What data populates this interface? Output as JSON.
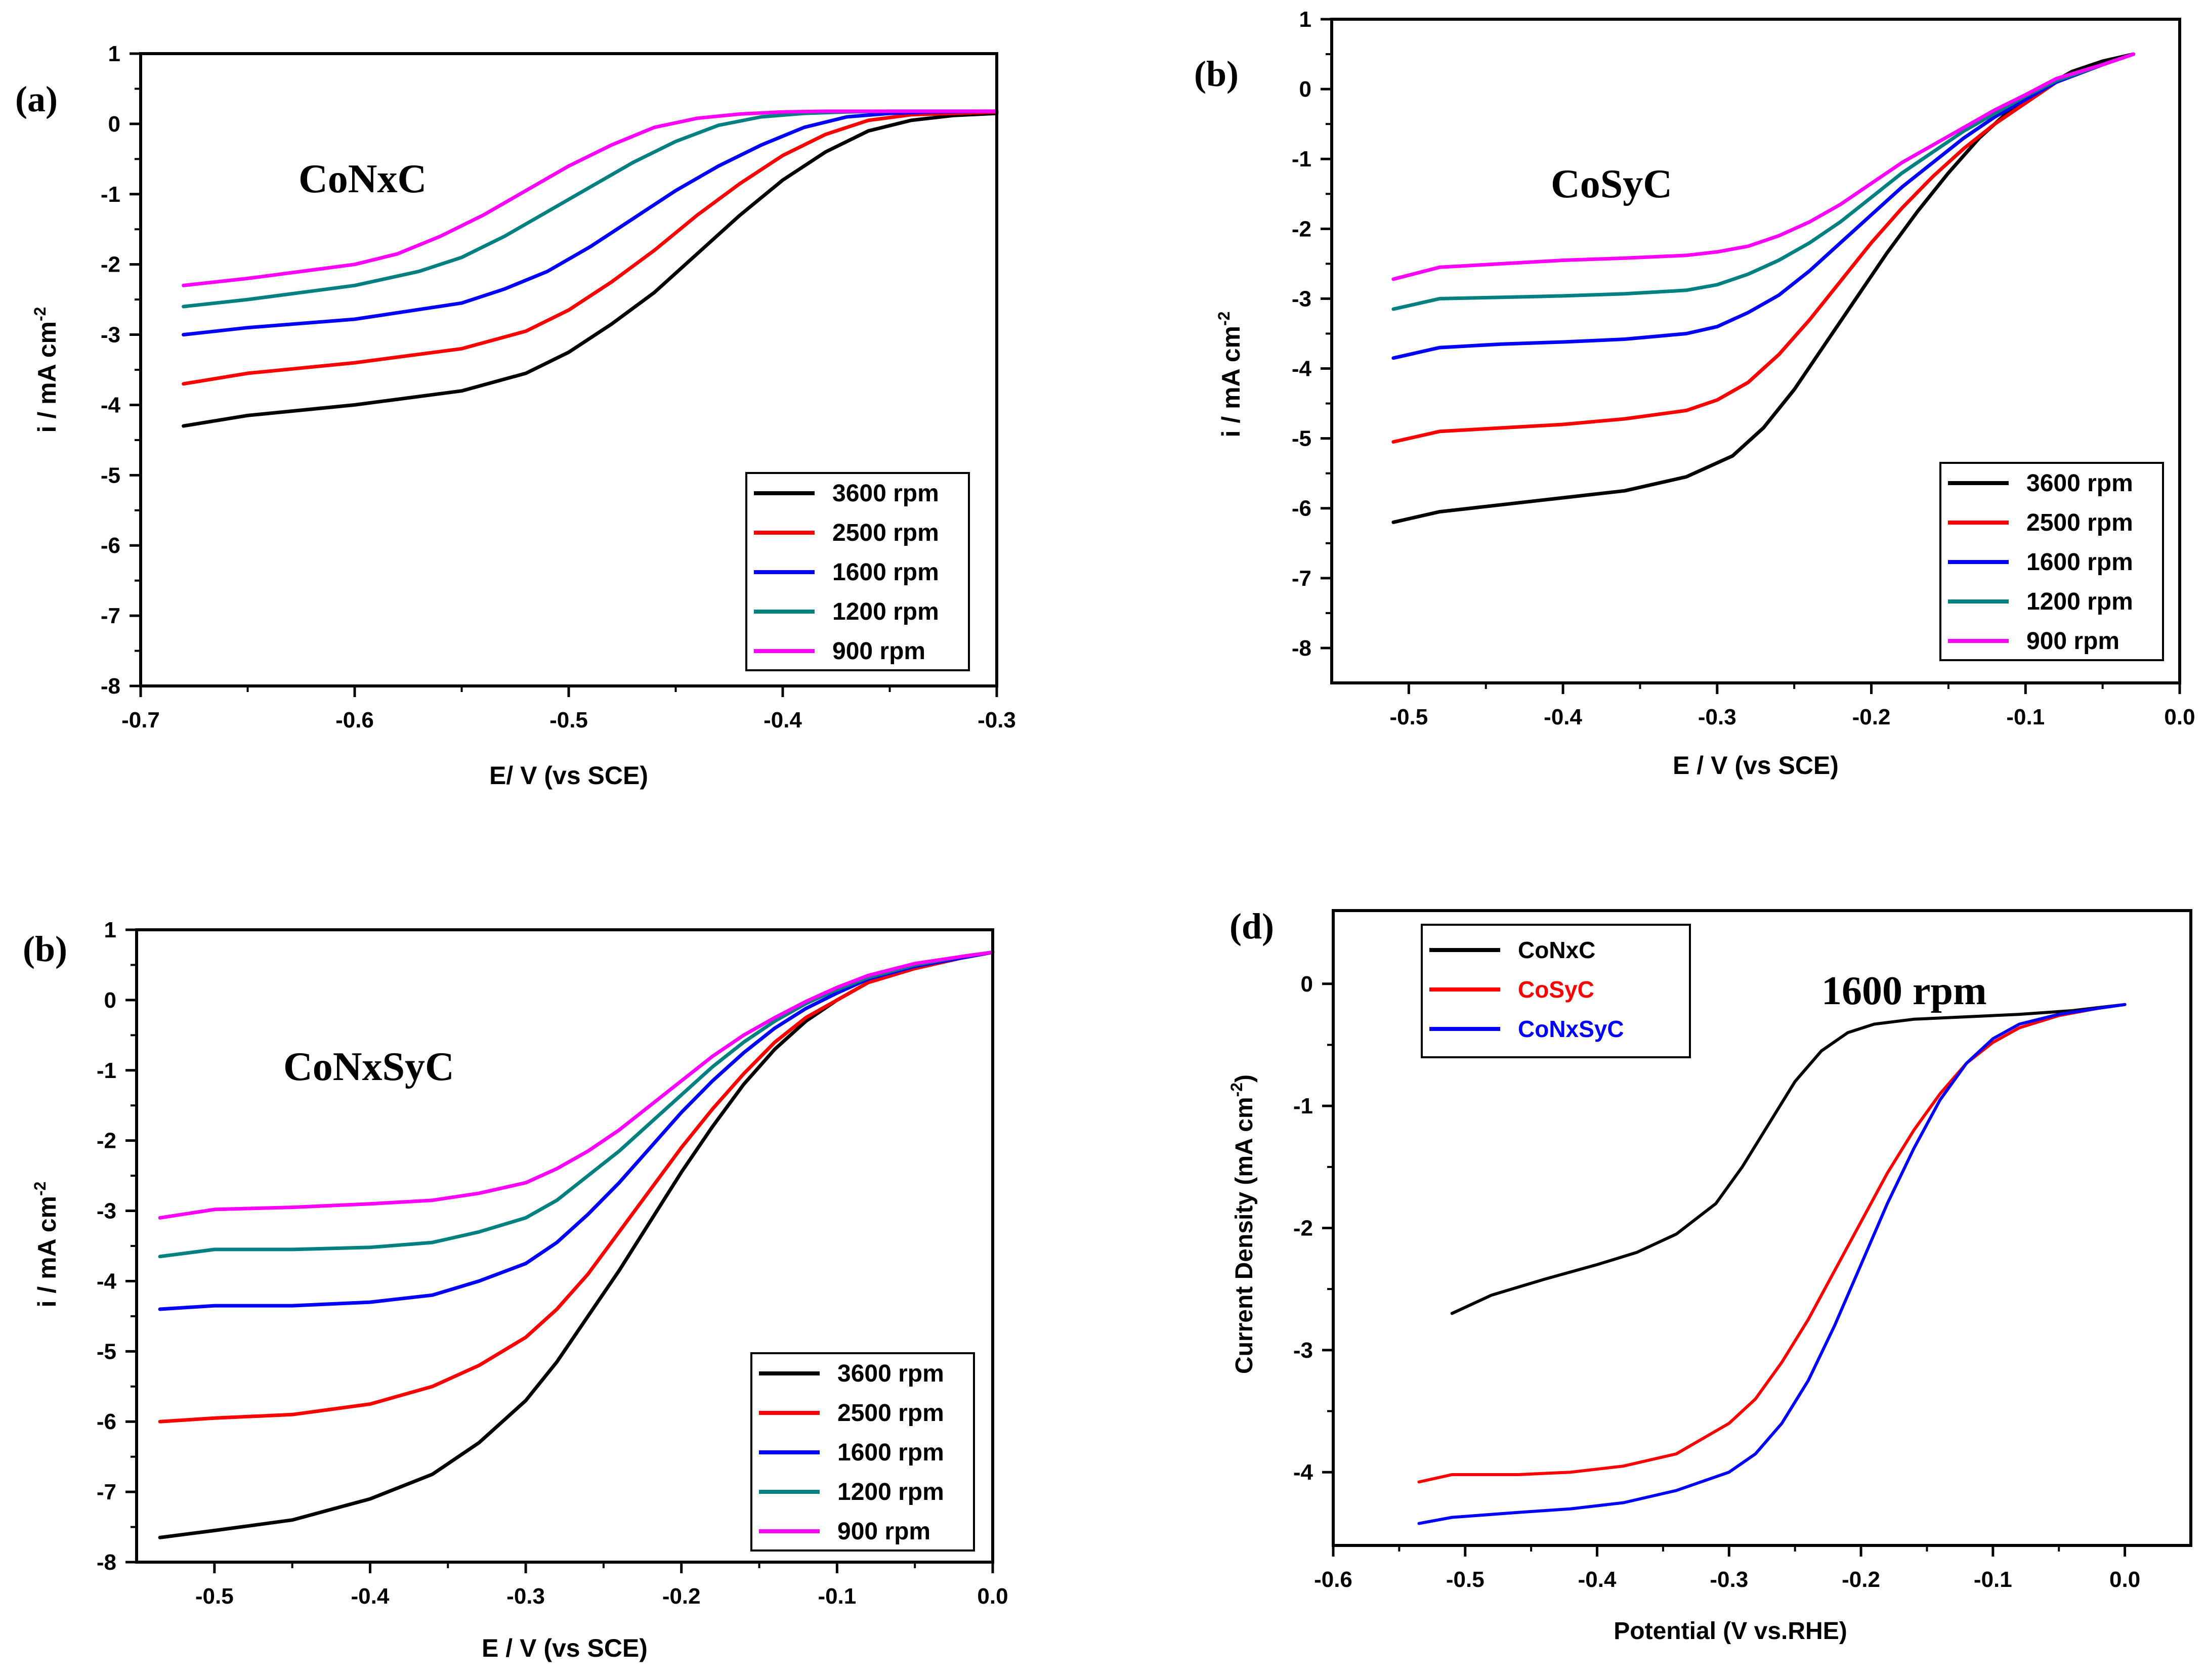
{
  "colors": {
    "3600": "#000000",
    "2500": "#ff0000",
    "1600": "#0000ff",
    "1200": "#008080",
    "900": "#ff00ff",
    "CoNxC": "#000000",
    "CoSyC": "#ff0000",
    "CoNxSyC": "#0000ff"
  },
  "chart_data": [
    {
      "id": "a",
      "panel_label": "(a)",
      "type": "line",
      "annotation": "CoNxC",
      "xlabel": "E/ V (vs SCE)",
      "ylabel_main": "i / mA cm",
      "ylabel_sup": "-2",
      "xlim": [
        -0.7,
        -0.3
      ],
      "ylim": [
        -8,
        1
      ],
      "xticks": [
        -0.7,
        -0.6,
        -0.5,
        -0.4,
        -0.3
      ],
      "xtick_labels": [
        "-0.7",
        "-0.6",
        "-0.5",
        "-0.4",
        "-0.3"
      ],
      "yticks": [
        1,
        0,
        -1,
        -2,
        -3,
        -4,
        -5,
        -6,
        -7,
        -8
      ],
      "ytick_labels": [
        "1",
        "0",
        "-1",
        "-2",
        "-3",
        "-4",
        "-5",
        "-6",
        "-7",
        "-8"
      ],
      "legend_position": "bottom-right",
      "series": [
        {
          "name": "3600 rpm",
          "color_key": "3600",
          "x": [
            -0.68,
            -0.65,
            -0.6,
            -0.55,
            -0.52,
            -0.5,
            -0.48,
            -0.46,
            -0.44,
            -0.42,
            -0.4,
            -0.38,
            -0.36,
            -0.34,
            -0.32,
            -0.3
          ],
          "y": [
            -4.3,
            -4.15,
            -4.0,
            -3.8,
            -3.55,
            -3.25,
            -2.85,
            -2.4,
            -1.85,
            -1.3,
            -0.8,
            -0.4,
            -0.1,
            0.05,
            0.12,
            0.15
          ]
        },
        {
          "name": "2500 rpm",
          "color_key": "2500",
          "x": [
            -0.68,
            -0.65,
            -0.6,
            -0.55,
            -0.52,
            -0.5,
            -0.48,
            -0.46,
            -0.44,
            -0.42,
            -0.4,
            -0.38,
            -0.36,
            -0.34,
            -0.32,
            -0.3
          ],
          "y": [
            -3.7,
            -3.55,
            -3.4,
            -3.2,
            -2.95,
            -2.65,
            -2.25,
            -1.8,
            -1.3,
            -0.85,
            -0.45,
            -0.15,
            0.05,
            0.13,
            0.15,
            0.17
          ]
        },
        {
          "name": "1600 rpm",
          "color_key": "1600",
          "x": [
            -0.68,
            -0.65,
            -0.6,
            -0.55,
            -0.53,
            -0.51,
            -0.49,
            -0.47,
            -0.45,
            -0.43,
            -0.41,
            -0.39,
            -0.37,
            -0.35,
            -0.33,
            -0.3
          ],
          "y": [
            -3.0,
            -2.9,
            -2.78,
            -2.55,
            -2.35,
            -2.1,
            -1.75,
            -1.35,
            -0.95,
            -0.6,
            -0.3,
            -0.05,
            0.1,
            0.15,
            0.17,
            0.18
          ]
        },
        {
          "name": "1200 rpm",
          "color_key": "1200",
          "x": [
            -0.68,
            -0.65,
            -0.6,
            -0.57,
            -0.55,
            -0.53,
            -0.51,
            -0.49,
            -0.47,
            -0.45,
            -0.43,
            -0.41,
            -0.39,
            -0.37,
            -0.35,
            -0.3
          ],
          "y": [
            -2.6,
            -2.5,
            -2.3,
            -2.1,
            -1.9,
            -1.6,
            -1.25,
            -0.9,
            -0.55,
            -0.25,
            -0.02,
            0.1,
            0.15,
            0.17,
            0.18,
            0.18
          ]
        },
        {
          "name": "900 rpm",
          "color_key": "900",
          "x": [
            -0.68,
            -0.65,
            -0.6,
            -0.58,
            -0.56,
            -0.54,
            -0.52,
            -0.5,
            -0.48,
            -0.46,
            -0.44,
            -0.42,
            -0.4,
            -0.38,
            -0.35,
            -0.3
          ],
          "y": [
            -2.3,
            -2.2,
            -2.0,
            -1.85,
            -1.6,
            -1.3,
            -0.95,
            -0.6,
            -0.3,
            -0.05,
            0.08,
            0.14,
            0.17,
            0.18,
            0.18,
            0.18
          ]
        }
      ]
    },
    {
      "id": "b",
      "panel_label": "(b)",
      "type": "line",
      "annotation": "CoSyC",
      "xlabel": "E / V (vs SCE)",
      "ylabel_main": "i / mA cm",
      "ylabel_sup": "-2",
      "xlim": [
        -0.55,
        0.0
      ],
      "ylim": [
        -8.5,
        1
      ],
      "xticks": [
        -0.5,
        -0.4,
        -0.3,
        -0.2,
        -0.1,
        0.0
      ],
      "xtick_labels": [
        "-0.5",
        "-0.4",
        "-0.3",
        "-0.2",
        "-0.1",
        "0.0"
      ],
      "yticks": [
        1,
        0,
        -1,
        -2,
        -3,
        -4,
        -5,
        -6,
        -7,
        -8
      ],
      "ytick_labels": [
        "1",
        "0",
        "-1",
        "-2",
        "-3",
        "-4",
        "-5",
        "-6",
        "-7",
        "-8"
      ],
      "legend_position": "bottom-right",
      "series": [
        {
          "name": "3600 rpm",
          "color_key": "3600",
          "x": [
            -0.51,
            -0.48,
            -0.44,
            -0.4,
            -0.36,
            -0.32,
            -0.29,
            -0.27,
            -0.25,
            -0.23,
            -0.21,
            -0.19,
            -0.17,
            -0.15,
            -0.13,
            -0.11,
            -0.09,
            -0.07,
            -0.05,
            -0.03
          ],
          "y": [
            -6.2,
            -6.05,
            -5.95,
            -5.85,
            -5.75,
            -5.55,
            -5.25,
            -4.85,
            -4.3,
            -3.65,
            -3.0,
            -2.35,
            -1.75,
            -1.2,
            -0.7,
            -0.3,
            0.0,
            0.25,
            0.4,
            0.5
          ]
        },
        {
          "name": "2500 rpm",
          "color_key": "2500",
          "x": [
            -0.51,
            -0.48,
            -0.44,
            -0.4,
            -0.36,
            -0.32,
            -0.3,
            -0.28,
            -0.26,
            -0.24,
            -0.22,
            -0.2,
            -0.18,
            -0.16,
            -0.14,
            -0.12,
            -0.1,
            -0.08,
            -0.05,
            -0.03
          ],
          "y": [
            -5.05,
            -4.9,
            -4.85,
            -4.8,
            -4.72,
            -4.6,
            -4.45,
            -4.2,
            -3.8,
            -3.3,
            -2.75,
            -2.2,
            -1.7,
            -1.25,
            -0.85,
            -0.5,
            -0.2,
            0.1,
            0.35,
            0.5
          ]
        },
        {
          "name": "1600 rpm",
          "color_key": "1600",
          "x": [
            -0.51,
            -0.48,
            -0.44,
            -0.4,
            -0.36,
            -0.32,
            -0.3,
            -0.28,
            -0.26,
            -0.24,
            -0.22,
            -0.2,
            -0.18,
            -0.16,
            -0.14,
            -0.12,
            -0.1,
            -0.08,
            -0.05,
            -0.03
          ],
          "y": [
            -3.85,
            -3.7,
            -3.65,
            -3.62,
            -3.58,
            -3.5,
            -3.4,
            -3.2,
            -2.95,
            -2.6,
            -2.2,
            -1.8,
            -1.4,
            -1.05,
            -0.7,
            -0.4,
            -0.15,
            0.1,
            0.35,
            0.5
          ]
        },
        {
          "name": "1200 rpm",
          "color_key": "1200",
          "x": [
            -0.51,
            -0.48,
            -0.44,
            -0.4,
            -0.36,
            -0.32,
            -0.3,
            -0.28,
            -0.26,
            -0.24,
            -0.22,
            -0.2,
            -0.18,
            -0.16,
            -0.14,
            -0.12,
            -0.1,
            -0.08,
            -0.05,
            -0.03
          ],
          "y": [
            -3.15,
            -3.0,
            -2.98,
            -2.96,
            -2.93,
            -2.88,
            -2.8,
            -2.65,
            -2.45,
            -2.2,
            -1.9,
            -1.55,
            -1.2,
            -0.9,
            -0.6,
            -0.35,
            -0.1,
            0.12,
            0.35,
            0.5
          ]
        },
        {
          "name": "900 rpm",
          "color_key": "900",
          "x": [
            -0.51,
            -0.48,
            -0.44,
            -0.4,
            -0.36,
            -0.32,
            -0.3,
            -0.28,
            -0.26,
            -0.24,
            -0.22,
            -0.2,
            -0.18,
            -0.16,
            -0.14,
            -0.12,
            -0.1,
            -0.08,
            -0.05,
            -0.03
          ],
          "y": [
            -2.72,
            -2.55,
            -2.5,
            -2.45,
            -2.42,
            -2.38,
            -2.33,
            -2.25,
            -2.1,
            -1.9,
            -1.65,
            -1.35,
            -1.05,
            -0.8,
            -0.55,
            -0.3,
            -0.08,
            0.15,
            0.35,
            0.5
          ]
        }
      ]
    },
    {
      "id": "c",
      "panel_label": "(b)",
      "type": "line",
      "annotation": "CoNxSyC",
      "xlabel": "E / V (vs SCE)",
      "ylabel_main": "i / mA cm",
      "ylabel_sup": "-2",
      "xlim": [
        -0.55,
        0.0
      ],
      "ylim": [
        -8,
        1
      ],
      "xticks": [
        -0.5,
        -0.4,
        -0.3,
        -0.2,
        -0.1,
        0.0
      ],
      "xtick_labels": [
        "-0.5",
        "-0.4",
        "-0.3",
        "-0.2",
        "-0.1",
        "0.0"
      ],
      "yticks": [
        1,
        0,
        -1,
        -2,
        -3,
        -4,
        -5,
        -6,
        -7,
        -8
      ],
      "ytick_labels": [
        "1",
        "0",
        "-1",
        "-2",
        "-3",
        "-4",
        "-5",
        "-6",
        "-7",
        "-8"
      ],
      "legend_position": "bottom-right",
      "series": [
        {
          "name": "3600 rpm",
          "color_key": "3600",
          "x": [
            -0.535,
            -0.5,
            -0.45,
            -0.4,
            -0.36,
            -0.33,
            -0.3,
            -0.28,
            -0.26,
            -0.24,
            -0.22,
            -0.2,
            -0.18,
            -0.16,
            -0.14,
            -0.12,
            -0.1,
            -0.08,
            -0.05,
            -0.02,
            0.0
          ],
          "y": [
            -7.65,
            -7.55,
            -7.4,
            -7.1,
            -6.75,
            -6.3,
            -5.7,
            -5.15,
            -4.5,
            -3.85,
            -3.15,
            -2.45,
            -1.8,
            -1.2,
            -0.7,
            -0.3,
            0.0,
            0.25,
            0.45,
            0.6,
            0.68
          ]
        },
        {
          "name": "2500 rpm",
          "color_key": "2500",
          "x": [
            -0.535,
            -0.5,
            -0.45,
            -0.4,
            -0.36,
            -0.33,
            -0.3,
            -0.28,
            -0.26,
            -0.24,
            -0.22,
            -0.2,
            -0.18,
            -0.16,
            -0.14,
            -0.12,
            -0.1,
            -0.08,
            -0.05,
            -0.02,
            0.0
          ],
          "y": [
            -6.0,
            -5.95,
            -5.9,
            -5.75,
            -5.5,
            -5.2,
            -4.8,
            -4.4,
            -3.9,
            -3.3,
            -2.7,
            -2.1,
            -1.55,
            -1.05,
            -0.6,
            -0.25,
            0.0,
            0.25,
            0.45,
            0.6,
            0.68
          ]
        },
        {
          "name": "1600 rpm",
          "color_key": "1600",
          "x": [
            -0.535,
            -0.5,
            -0.45,
            -0.4,
            -0.36,
            -0.33,
            -0.3,
            -0.28,
            -0.26,
            -0.24,
            -0.22,
            -0.2,
            -0.18,
            -0.16,
            -0.14,
            -0.12,
            -0.1,
            -0.08,
            -0.05,
            -0.02,
            0.0
          ],
          "y": [
            -4.4,
            -4.35,
            -4.35,
            -4.3,
            -4.2,
            -4.0,
            -3.75,
            -3.45,
            -3.05,
            -2.6,
            -2.1,
            -1.6,
            -1.15,
            -0.75,
            -0.4,
            -0.12,
            0.1,
            0.3,
            0.48,
            0.6,
            0.68
          ]
        },
        {
          "name": "1200 rpm",
          "color_key": "1200",
          "x": [
            -0.535,
            -0.5,
            -0.45,
            -0.4,
            -0.36,
            -0.33,
            -0.3,
            -0.28,
            -0.26,
            -0.24,
            -0.22,
            -0.2,
            -0.18,
            -0.16,
            -0.14,
            -0.12,
            -0.1,
            -0.08,
            -0.05,
            -0.02,
            0.0
          ],
          "y": [
            -3.65,
            -3.55,
            -3.55,
            -3.52,
            -3.45,
            -3.3,
            -3.1,
            -2.85,
            -2.5,
            -2.15,
            -1.75,
            -1.35,
            -0.95,
            -0.6,
            -0.3,
            -0.05,
            0.15,
            0.32,
            0.5,
            0.62,
            0.68
          ]
        },
        {
          "name": "900 rpm",
          "color_key": "900",
          "x": [
            -0.535,
            -0.5,
            -0.45,
            -0.4,
            -0.36,
            -0.33,
            -0.3,
            -0.28,
            -0.26,
            -0.24,
            -0.22,
            -0.2,
            -0.18,
            -0.16,
            -0.14,
            -0.12,
            -0.1,
            -0.08,
            -0.05,
            -0.02,
            0.0
          ],
          "y": [
            -3.1,
            -2.98,
            -2.95,
            -2.9,
            -2.85,
            -2.75,
            -2.6,
            -2.4,
            -2.15,
            -1.85,
            -1.5,
            -1.15,
            -0.8,
            -0.5,
            -0.25,
            -0.02,
            0.18,
            0.35,
            0.52,
            0.62,
            0.68
          ]
        }
      ]
    },
    {
      "id": "d",
      "panel_label": "(d)",
      "type": "line",
      "annotation": "1600 rpm",
      "xlabel": "Potential (V vs.RHE)",
      "ylabel_main": "Current Density (mA cm",
      "ylabel_sup": "-2",
      "ylabel_end": ")",
      "xlim": [
        -0.6,
        0.05
      ],
      "ylim": [
        -4.6,
        0.6
      ],
      "xticks": [
        -0.6,
        -0.5,
        -0.4,
        -0.3,
        -0.2,
        -0.1,
        0.0
      ],
      "xtick_labels": [
        "-0.6",
        "-0.5",
        "-0.4",
        "-0.3",
        "-0.2",
        "-0.1",
        "0.0"
      ],
      "yticks": [
        0,
        -1,
        -2,
        -3,
        -4
      ],
      "ytick_labels": [
        "0",
        "-1",
        "-2",
        "-3",
        "-4"
      ],
      "legend_position": "top-left",
      "series": [
        {
          "name": "CoNxC",
          "color_key": "CoNxC",
          "x": [
            -0.51,
            -0.48,
            -0.44,
            -0.4,
            -0.37,
            -0.34,
            -0.31,
            -0.29,
            -0.27,
            -0.25,
            -0.23,
            -0.21,
            -0.19,
            -0.16,
            -0.12,
            -0.08,
            -0.04,
            0.0
          ],
          "y": [
            -2.7,
            -2.55,
            -2.42,
            -2.3,
            -2.2,
            -2.05,
            -1.8,
            -1.5,
            -1.15,
            -0.8,
            -0.55,
            -0.4,
            -0.33,
            -0.29,
            -0.27,
            -0.25,
            -0.22,
            -0.17
          ]
        },
        {
          "name": "CoSyC",
          "color_key": "CoSyC",
          "x": [
            -0.535,
            -0.51,
            -0.46,
            -0.42,
            -0.38,
            -0.34,
            -0.3,
            -0.28,
            -0.26,
            -0.24,
            -0.22,
            -0.2,
            -0.18,
            -0.16,
            -0.14,
            -0.12,
            -0.1,
            -0.08,
            -0.05,
            -0.02,
            0.0
          ],
          "y": [
            -4.08,
            -4.02,
            -4.02,
            -4.0,
            -3.95,
            -3.85,
            -3.6,
            -3.4,
            -3.1,
            -2.75,
            -2.35,
            -1.95,
            -1.55,
            -1.2,
            -0.9,
            -0.65,
            -0.48,
            -0.36,
            -0.26,
            -0.2,
            -0.17
          ]
        },
        {
          "name": "CoNxSyC",
          "color_key": "CoNxSyC",
          "x": [
            -0.535,
            -0.51,
            -0.46,
            -0.42,
            -0.38,
            -0.34,
            -0.3,
            -0.28,
            -0.26,
            -0.24,
            -0.22,
            -0.2,
            -0.18,
            -0.16,
            -0.14,
            -0.12,
            -0.1,
            -0.08,
            -0.05,
            -0.02,
            0.0
          ],
          "y": [
            -4.42,
            -4.37,
            -4.33,
            -4.3,
            -4.25,
            -4.15,
            -4.0,
            -3.85,
            -3.6,
            -3.25,
            -2.8,
            -2.3,
            -1.8,
            -1.35,
            -0.95,
            -0.65,
            -0.45,
            -0.33,
            -0.25,
            -0.2,
            -0.17
          ]
        }
      ]
    }
  ]
}
